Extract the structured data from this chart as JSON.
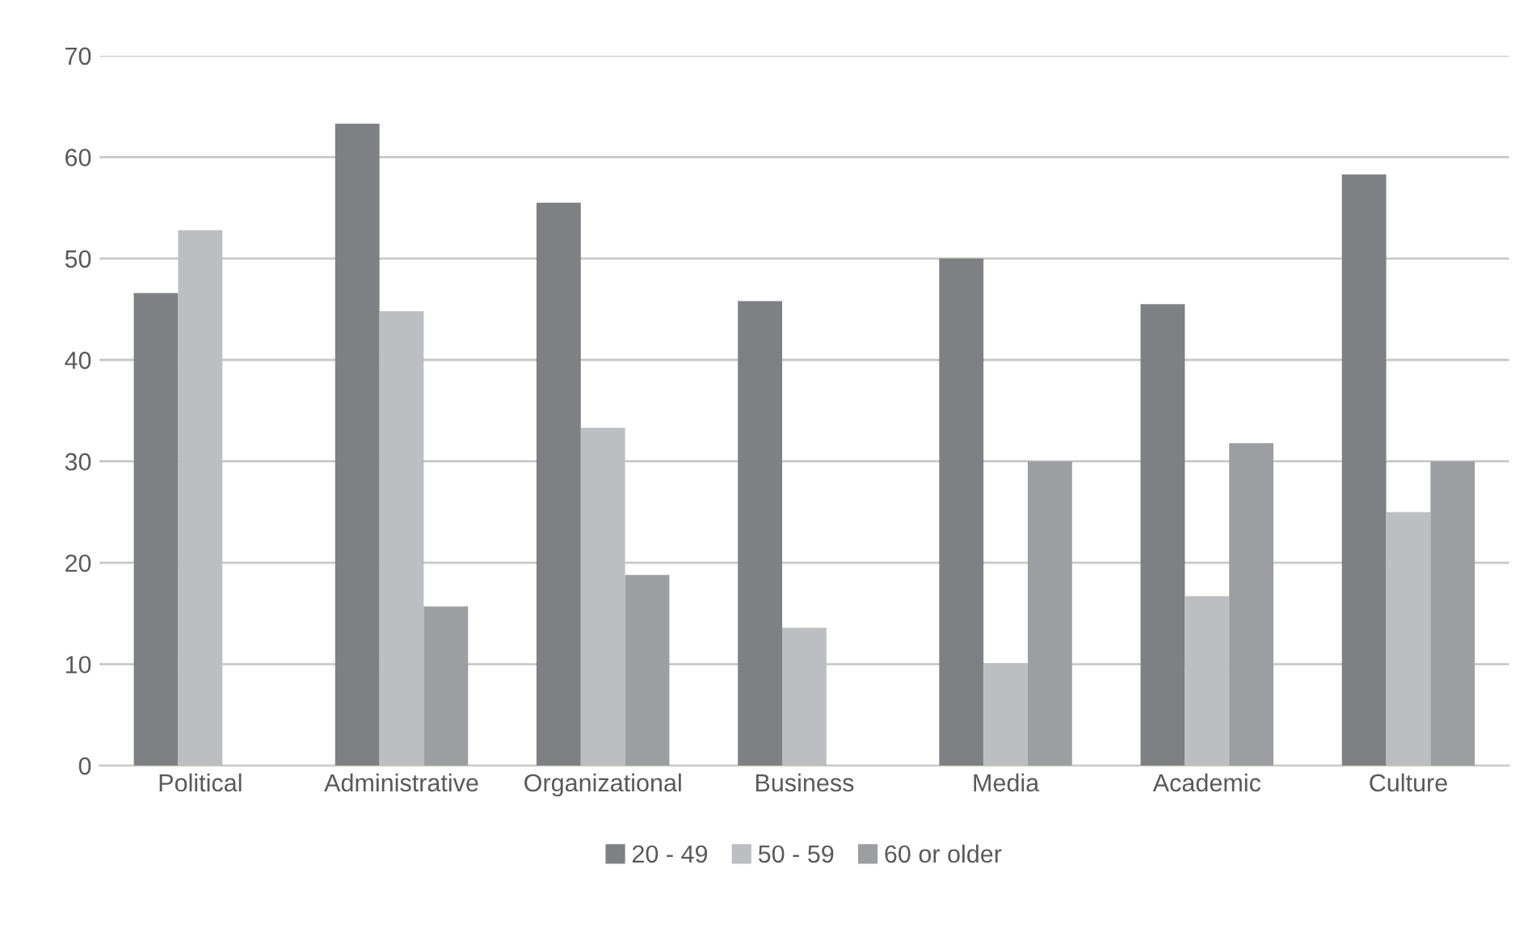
{
  "chart_data": {
    "type": "bar",
    "categories": [
      "Political",
      "Administrative",
      "Organizational",
      "Business",
      "Media",
      "Academic",
      "Culture"
    ],
    "series": [
      {
        "name": "20 - 49",
        "color": "#7f8084",
        "values": [
          46.6,
          63.3,
          55.5,
          45.8,
          50,
          45.5,
          58.3
        ]
      },
      {
        "name": "50 - 59",
        "color": "#bdbec2",
        "values": [
          52.8,
          44.8,
          33.3,
          13.6,
          10.1,
          16.7,
          25
        ]
      },
      {
        "name": "60 or older",
        "color": "#9d9ea2",
        "values": [
          null,
          15.7,
          18.8,
          null,
          30,
          31.8,
          30
        ]
      }
    ],
    "ylim": [
      0,
      70
    ],
    "yticks": [
      0,
      10,
      20,
      30,
      40,
      50,
      60,
      70
    ],
    "grid": "y",
    "legend": "bottom"
  }
}
